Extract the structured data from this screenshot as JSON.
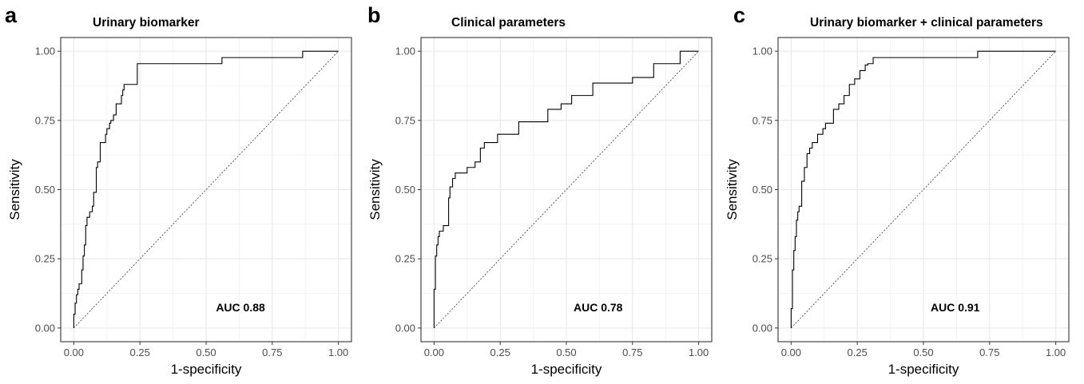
{
  "chart_data": [
    {
      "type": "line",
      "panel": "a",
      "title": "Urinary biomarker",
      "xlabel": "1-specificity",
      "ylabel": "Sensitivity",
      "xlim": [
        0,
        1
      ],
      "ylim": [
        0,
        1
      ],
      "x_ticks": [
        "0.00",
        "0.25",
        "0.50",
        "0.75",
        "1.00"
      ],
      "y_ticks": [
        "0.00",
        "0.25",
        "0.50",
        "0.75",
        "1.00"
      ],
      "grid": true,
      "annotation": "AUC 0.88",
      "diagonal_reference": true,
      "series": [
        {
          "x": [
            0.0,
            0.0,
            0.005,
            0.005,
            0.01,
            0.01,
            0.015,
            0.015,
            0.02,
            0.02,
            0.03,
            0.03,
            0.035,
            0.035,
            0.04,
            0.04,
            0.045,
            0.045,
            0.05,
            0.05,
            0.06,
            0.06,
            0.07,
            0.07,
            0.075,
            0.075,
            0.085,
            0.085,
            0.09,
            0.09,
            0.1,
            0.1,
            0.12,
            0.12,
            0.125,
            0.125,
            0.135,
            0.135,
            0.14,
            0.14,
            0.15,
            0.15,
            0.16,
            0.16,
            0.18,
            0.18,
            0.185,
            0.185,
            0.19,
            0.19,
            0.21,
            0.21,
            0.24,
            0.24,
            0.56,
            0.56,
            0.865,
            0.865,
            1.0
          ],
          "y": [
            0.0,
            0.05,
            0.05,
            0.09,
            0.09,
            0.12,
            0.12,
            0.14,
            0.14,
            0.16,
            0.16,
            0.21,
            0.21,
            0.26,
            0.26,
            0.3,
            0.3,
            0.37,
            0.37,
            0.4,
            0.4,
            0.42,
            0.42,
            0.44,
            0.44,
            0.49,
            0.49,
            0.58,
            0.58,
            0.6,
            0.6,
            0.67,
            0.67,
            0.7,
            0.7,
            0.72,
            0.72,
            0.74,
            0.74,
            0.75,
            0.75,
            0.77,
            0.77,
            0.81,
            0.81,
            0.84,
            0.84,
            0.86,
            0.86,
            0.88,
            0.88,
            0.88,
            0.88,
            0.955,
            0.955,
            0.977,
            0.977,
            1.0,
            1.0
          ]
        }
      ]
    },
    {
      "type": "line",
      "panel": "b",
      "title": "Clinical parameters",
      "xlabel": "1-specificity",
      "ylabel": "Sensitivity",
      "xlim": [
        0,
        1
      ],
      "ylim": [
        0,
        1
      ],
      "x_ticks": [
        "0.00",
        "0.25",
        "0.50",
        "0.75",
        "1.00"
      ],
      "y_ticks": [
        "0.00",
        "0.25",
        "0.50",
        "0.75",
        "1.00"
      ],
      "grid": true,
      "annotation": "AUC 0.78",
      "diagonal_reference": true,
      "series": [
        {
          "x": [
            0.0,
            0.0,
            0.005,
            0.005,
            0.01,
            0.01,
            0.015,
            0.015,
            0.02,
            0.02,
            0.035,
            0.035,
            0.055,
            0.055,
            0.06,
            0.06,
            0.07,
            0.07,
            0.08,
            0.08,
            0.125,
            0.125,
            0.155,
            0.155,
            0.175,
            0.175,
            0.19,
            0.19,
            0.205,
            0.205,
            0.24,
            0.24,
            0.32,
            0.32,
            0.43,
            0.43,
            0.48,
            0.48,
            0.52,
            0.52,
            0.6,
            0.6,
            0.75,
            0.75,
            0.83,
            0.83,
            0.93,
            0.93,
            1.0
          ],
          "y": [
            0.0,
            0.14,
            0.14,
            0.26,
            0.26,
            0.3,
            0.3,
            0.33,
            0.33,
            0.35,
            0.35,
            0.37,
            0.37,
            0.47,
            0.47,
            0.51,
            0.51,
            0.54,
            0.54,
            0.56,
            0.56,
            0.58,
            0.58,
            0.6,
            0.6,
            0.65,
            0.65,
            0.67,
            0.67,
            0.67,
            0.67,
            0.7,
            0.7,
            0.745,
            0.745,
            0.79,
            0.79,
            0.81,
            0.81,
            0.84,
            0.84,
            0.885,
            0.885,
            0.905,
            0.905,
            0.955,
            0.955,
            1.0,
            1.0
          ]
        }
      ]
    },
    {
      "type": "line",
      "panel": "c",
      "title": "Urinary biomarker + clinical parameters",
      "xlabel": "1-specificity",
      "ylabel": "Sensitivity",
      "xlim": [
        0,
        1
      ],
      "ylim": [
        0,
        1
      ],
      "x_ticks": [
        "0.00",
        "0.25",
        "0.50",
        "0.75",
        "1.00"
      ],
      "y_ticks": [
        "0.00",
        "0.25",
        "0.50",
        "0.75",
        "1.00"
      ],
      "grid": true,
      "annotation": "AUC 0.91",
      "diagonal_reference": true,
      "series": [
        {
          "x": [
            0.0,
            0.0,
            0.005,
            0.005,
            0.01,
            0.01,
            0.015,
            0.015,
            0.02,
            0.02,
            0.025,
            0.025,
            0.03,
            0.03,
            0.04,
            0.04,
            0.05,
            0.05,
            0.06,
            0.06,
            0.07,
            0.07,
            0.08,
            0.08,
            0.1,
            0.1,
            0.12,
            0.12,
            0.13,
            0.13,
            0.14,
            0.14,
            0.16,
            0.16,
            0.18,
            0.18,
            0.19,
            0.19,
            0.2,
            0.2,
            0.22,
            0.22,
            0.24,
            0.24,
            0.26,
            0.26,
            0.28,
            0.28,
            0.29,
            0.29,
            0.31,
            0.31,
            0.705,
            0.705,
            1.0
          ],
          "y": [
            0.0,
            0.07,
            0.07,
            0.21,
            0.21,
            0.28,
            0.28,
            0.33,
            0.33,
            0.39,
            0.39,
            0.42,
            0.42,
            0.44,
            0.44,
            0.53,
            0.53,
            0.58,
            0.58,
            0.63,
            0.63,
            0.65,
            0.65,
            0.67,
            0.67,
            0.7,
            0.7,
            0.72,
            0.72,
            0.74,
            0.74,
            0.74,
            0.74,
            0.79,
            0.79,
            0.81,
            0.81,
            0.81,
            0.81,
            0.84,
            0.84,
            0.88,
            0.88,
            0.9,
            0.9,
            0.93,
            0.93,
            0.95,
            0.95,
            0.955,
            0.955,
            0.977,
            0.977,
            1.0,
            1.0
          ]
        }
      ]
    }
  ]
}
